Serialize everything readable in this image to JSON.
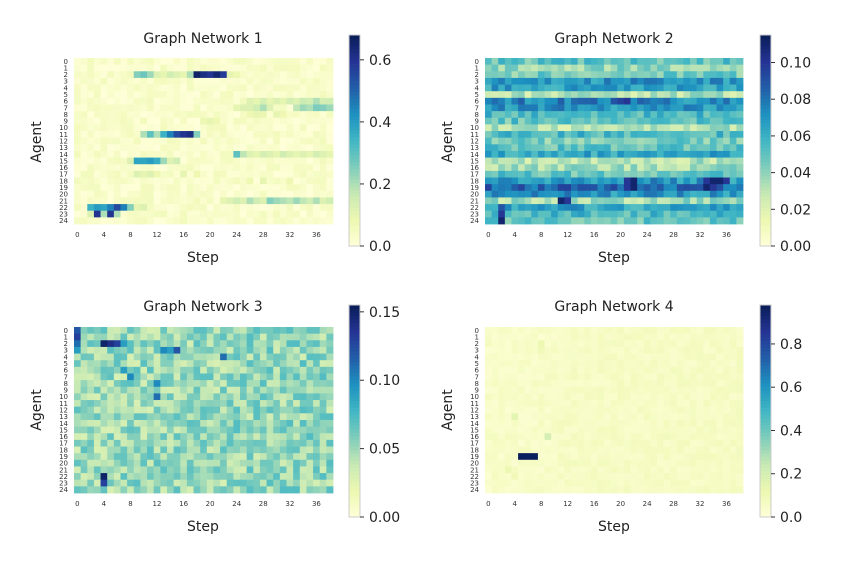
{
  "chart_data": [
    {
      "type": "heatmap",
      "title": "Graph Network 1",
      "xlabel": "Step",
      "ylabel": "Agent",
      "xticks": [
        "0",
        "4",
        "8",
        "12",
        "16",
        "20",
        "24",
        "28",
        "32",
        "36"
      ],
      "yticks": [
        "0",
        "1",
        "2",
        "3",
        "4",
        "5",
        "6",
        "7",
        "8",
        "9",
        "10",
        "11",
        "12",
        "13",
        "14",
        "15",
        "16",
        "17",
        "18",
        "19",
        "20",
        "21",
        "22",
        "23",
        "24"
      ],
      "n_rows": 25,
      "n_cols": 39,
      "vmin": 0,
      "vmax": 0.68,
      "colorbar_ticks": [
        "0.0",
        "0.2",
        "0.4",
        "0.6"
      ],
      "colormap": "YlGnBu",
      "base": 0.03,
      "noise": 0.03,
      "cells": [
        [
          2,
          9,
          0.25
        ],
        [
          2,
          10,
          0.28
        ],
        [
          2,
          11,
          0.22
        ],
        [
          2,
          12,
          0.12
        ],
        [
          2,
          13,
          0.1
        ],
        [
          2,
          14,
          0.15
        ],
        [
          2,
          15,
          0.12
        ],
        [
          2,
          16,
          0.1
        ],
        [
          2,
          17,
          0.2
        ],
        [
          2,
          18,
          0.66
        ],
        [
          2,
          19,
          0.62
        ],
        [
          2,
          20,
          0.6
        ],
        [
          2,
          21,
          0.64
        ],
        [
          2,
          22,
          0.58
        ],
        [
          2,
          23,
          0.1
        ],
        [
          2,
          24,
          0.08
        ],
        [
          6,
          26,
          0.12
        ],
        [
          6,
          27,
          0.1
        ],
        [
          6,
          28,
          0.14
        ],
        [
          6,
          29,
          0.1
        ],
        [
          6,
          30,
          0.12
        ],
        [
          6,
          31,
          0.1
        ],
        [
          6,
          32,
          0.14
        ],
        [
          6,
          33,
          0.12
        ],
        [
          6,
          34,
          0.16
        ],
        [
          6,
          35,
          0.15
        ],
        [
          6,
          36,
          0.2
        ],
        [
          6,
          37,
          0.14
        ],
        [
          6,
          38,
          0.15
        ],
        [
          7,
          24,
          0.1
        ],
        [
          7,
          25,
          0.12
        ],
        [
          7,
          26,
          0.12
        ],
        [
          7,
          27,
          0.15
        ],
        [
          7,
          28,
          0.2
        ],
        [
          7,
          29,
          0.12
        ],
        [
          7,
          33,
          0.18
        ],
        [
          7,
          34,
          0.22
        ],
        [
          7,
          35,
          0.2
        ],
        [
          7,
          36,
          0.26
        ],
        [
          7,
          37,
          0.25
        ],
        [
          7,
          38,
          0.22
        ],
        [
          8,
          26,
          0.08
        ],
        [
          8,
          27,
          0.1
        ],
        [
          8,
          28,
          0.09
        ],
        [
          8,
          30,
          0.1
        ],
        [
          8,
          31,
          0.08
        ],
        [
          9,
          19,
          0.08
        ],
        [
          9,
          20,
          0.1
        ],
        [
          9,
          21,
          0.08
        ],
        [
          11,
          10,
          0.2
        ],
        [
          11,
          11,
          0.3
        ],
        [
          11,
          12,
          0.2
        ],
        [
          11,
          13,
          0.35
        ],
        [
          11,
          14,
          0.45
        ],
        [
          11,
          15,
          0.55
        ],
        [
          11,
          16,
          0.6
        ],
        [
          11,
          17,
          0.62
        ],
        [
          11,
          18,
          0.25
        ],
        [
          14,
          24,
          0.3
        ],
        [
          14,
          25,
          0.18
        ],
        [
          14,
          26,
          0.12
        ],
        [
          14,
          27,
          0.1
        ],
        [
          14,
          28,
          0.14
        ],
        [
          14,
          29,
          0.12
        ],
        [
          14,
          30,
          0.1
        ],
        [
          14,
          31,
          0.15
        ],
        [
          14,
          32,
          0.12
        ],
        [
          14,
          33,
          0.1
        ],
        [
          14,
          34,
          0.12
        ],
        [
          14,
          35,
          0.1
        ],
        [
          14,
          36,
          0.14
        ],
        [
          14,
          37,
          0.12
        ],
        [
          14,
          38,
          0.1
        ],
        [
          15,
          8,
          0.12
        ],
        [
          15,
          9,
          0.38
        ],
        [
          15,
          10,
          0.38
        ],
        [
          15,
          11,
          0.4
        ],
        [
          15,
          12,
          0.36
        ],
        [
          15,
          13,
          0.22
        ],
        [
          15,
          14,
          0.12
        ],
        [
          15,
          15,
          0.15
        ],
        [
          17,
          9,
          0.12
        ],
        [
          17,
          10,
          0.1
        ],
        [
          17,
          11,
          0.12
        ],
        [
          17,
          12,
          0.08
        ],
        [
          17,
          16,
          0.1
        ],
        [
          17,
          18,
          0.08
        ],
        [
          18,
          26,
          0.08
        ],
        [
          18,
          28,
          0.1
        ],
        [
          18,
          32,
          0.08
        ],
        [
          21,
          22,
          0.1
        ],
        [
          21,
          23,
          0.12
        ],
        [
          21,
          24,
          0.15
        ],
        [
          21,
          25,
          0.12
        ],
        [
          21,
          26,
          0.2
        ],
        [
          21,
          27,
          0.15
        ],
        [
          21,
          28,
          0.12
        ],
        [
          21,
          29,
          0.25
        ],
        [
          21,
          30,
          0.22
        ],
        [
          21,
          31,
          0.2
        ],
        [
          21,
          32,
          0.18
        ],
        [
          21,
          33,
          0.22
        ],
        [
          21,
          34,
          0.18
        ],
        [
          21,
          35,
          0.15
        ],
        [
          21,
          36,
          0.2
        ],
        [
          21,
          37,
          0.12
        ],
        [
          21,
          38,
          0.15
        ],
        [
          22,
          2,
          0.35
        ],
        [
          22,
          3,
          0.4
        ],
        [
          22,
          4,
          0.38
        ],
        [
          22,
          5,
          0.45
        ],
        [
          22,
          6,
          0.55
        ],
        [
          22,
          7,
          0.45
        ],
        [
          22,
          8,
          0.25
        ],
        [
          22,
          9,
          0.1
        ],
        [
          22,
          10,
          0.12
        ],
        [
          23,
          2,
          0.12
        ],
        [
          23,
          3,
          0.6
        ],
        [
          23,
          4,
          0.2
        ],
        [
          23,
          5,
          0.6
        ],
        [
          23,
          6,
          0.2
        ]
      ]
    },
    {
      "type": "heatmap",
      "title": "Graph Network 2",
      "xlabel": "Step",
      "ylabel": "Agent",
      "xticks": [
        "0",
        "4",
        "8",
        "12",
        "16",
        "20",
        "24",
        "28",
        "32",
        "36"
      ],
      "yticks": [
        "0",
        "1",
        "2",
        "3",
        "4",
        "5",
        "6",
        "7",
        "8",
        "9",
        "10",
        "11",
        "12",
        "13",
        "14",
        "15",
        "16",
        "17",
        "18",
        "19",
        "20",
        "21",
        "22",
        "23",
        "24"
      ],
      "n_rows": 25,
      "n_cols": 39,
      "vmin": 0,
      "vmax": 0.115,
      "colorbar_ticks": [
        "0.00",
        "0.02",
        "0.04",
        "0.06",
        "0.08",
        "0.10"
      ],
      "colormap": "YlGnBu",
      "base": 0.038,
      "noise": 0.012,
      "row_levels": [
        0.05,
        0.04,
        0.045,
        0.07,
        0.065,
        0.03,
        0.075,
        0.07,
        0.055,
        0.05,
        0.03,
        0.055,
        0.045,
        0.05,
        0.065,
        0.03,
        0.035,
        0.05,
        0.07,
        0.085,
        0.07,
        0.035,
        0.065,
        0.055,
        0.05
      ],
      "cells": [
        [
          3,
          24,
          0.08
        ],
        [
          3,
          25,
          0.08
        ],
        [
          3,
          30,
          0.07
        ],
        [
          3,
          34,
          0.08
        ],
        [
          6,
          19,
          0.09
        ],
        [
          6,
          20,
          0.095
        ],
        [
          6,
          21,
          0.1
        ],
        [
          18,
          21,
          0.1
        ],
        [
          18,
          22,
          0.11
        ],
        [
          18,
          33,
          0.1
        ],
        [
          18,
          34,
          0.11
        ],
        [
          18,
          35,
          0.11
        ],
        [
          18,
          36,
          0.1
        ],
        [
          19,
          21,
          0.1
        ],
        [
          19,
          22,
          0.11
        ],
        [
          19,
          32,
          0.09
        ],
        [
          19,
          33,
          0.11
        ],
        [
          19,
          34,
          0.1
        ],
        [
          21,
          11,
          0.11
        ],
        [
          21,
          12,
          0.1
        ],
        [
          22,
          2,
          0.09
        ],
        [
          23,
          2,
          0.1
        ],
        [
          24,
          2,
          0.11
        ]
      ]
    },
    {
      "type": "heatmap",
      "title": "Graph Network 3",
      "xlabel": "Step",
      "ylabel": "Agent",
      "xticks": [
        "0",
        "4",
        "8",
        "12",
        "16",
        "20",
        "24",
        "28",
        "32",
        "36"
      ],
      "yticks": [
        "0",
        "1",
        "2",
        "3",
        "4",
        "5",
        "6",
        "7",
        "8",
        "9",
        "10",
        "11",
        "12",
        "13",
        "14",
        "15",
        "16",
        "17",
        "18",
        "19",
        "20",
        "21",
        "22",
        "23",
        "24"
      ],
      "n_rows": 25,
      "n_cols": 39,
      "vmin": 0,
      "vmax": 0.155,
      "colorbar_ticks": [
        "0.00",
        "0.05",
        "0.10",
        "0.15"
      ],
      "colormap": "YlGnBu",
      "base": 0.05,
      "noise": 0.02,
      "row_levels": [],
      "cells": [
        [
          0,
          0,
          0.12
        ],
        [
          1,
          0,
          0.13
        ],
        [
          2,
          0,
          0.11
        ],
        [
          3,
          0,
          0.09
        ],
        [
          2,
          4,
          0.15
        ],
        [
          2,
          5,
          0.14
        ],
        [
          2,
          6,
          0.13
        ],
        [
          2,
          7,
          0.09
        ],
        [
          3,
          13,
          0.1
        ],
        [
          3,
          14,
          0.09
        ],
        [
          3,
          15,
          0.12
        ],
        [
          4,
          22,
          0.11
        ],
        [
          6,
          7,
          0.09
        ],
        [
          7,
          8,
          0.1
        ],
        [
          8,
          12,
          0.1
        ],
        [
          10,
          12,
          0.11
        ],
        [
          22,
          4,
          0.15
        ],
        [
          23,
          4,
          0.13
        ]
      ]
    },
    {
      "type": "heatmap",
      "title": "Graph Network 4",
      "xlabel": "Step",
      "ylabel": "Agent",
      "xticks": [
        "0",
        "4",
        "8",
        "12",
        "16",
        "20",
        "24",
        "28",
        "32",
        "36"
      ],
      "yticks": [
        "0",
        "1",
        "2",
        "3",
        "4",
        "5",
        "6",
        "7",
        "8",
        "9",
        "10",
        "11",
        "12",
        "13",
        "14",
        "15",
        "16",
        "17",
        "18",
        "19",
        "20",
        "21",
        "22",
        "23",
        "24"
      ],
      "n_rows": 25,
      "n_cols": 39,
      "vmin": 0,
      "vmax": 0.98,
      "colorbar_ticks": [
        "0.0",
        "0.2",
        "0.4",
        "0.6",
        "0.8"
      ],
      "colormap": "YlGnBu",
      "base": 0.05,
      "noise": 0.025,
      "row_levels": [],
      "cells": [
        [
          19,
          5,
          0.97
        ],
        [
          19,
          6,
          0.97
        ],
        [
          19,
          7,
          0.97
        ],
        [
          16,
          9,
          0.2
        ],
        [
          13,
          4,
          0.15
        ],
        [
          2,
          8,
          0.12
        ],
        [
          3,
          8,
          0.1
        ],
        [
          21,
          3,
          0.12
        ],
        [
          22,
          4,
          0.1
        ]
      ]
    }
  ]
}
